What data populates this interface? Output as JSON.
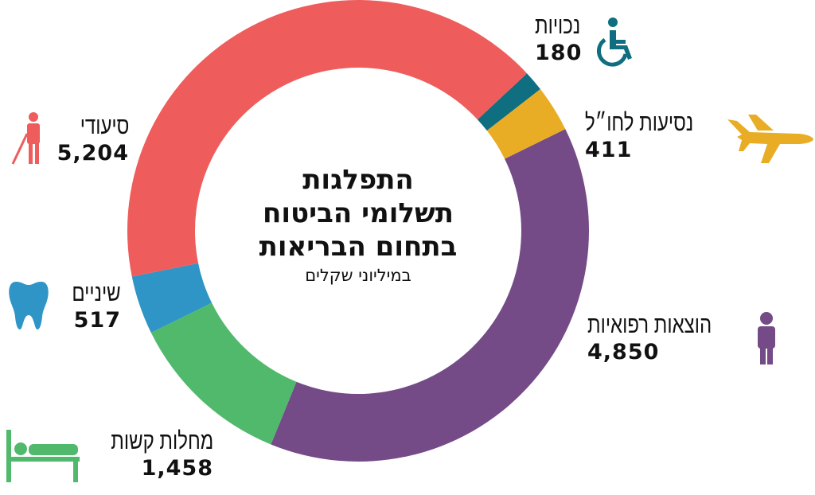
{
  "chart_data": {
    "type": "pie",
    "style": "donut",
    "title": [
      "התפלגות",
      "תשלומי הביטוח",
      "בתחום הבריאות"
    ],
    "subtitle": "במיליוני שקלים",
    "slices": [
      {
        "label": "נכויות",
        "value": 180,
        "display": "180",
        "color": "#0f6e80",
        "icon": "wheelchair-icon"
      },
      {
        "label": "נסיעות לחו״ל",
        "value": 411,
        "display": "411",
        "color": "#e9ad25",
        "icon": "airplane-icon"
      },
      {
        "label": "הוצאות רפואיות",
        "value": 4850,
        "display": "4,850",
        "color": "#744a87",
        "icon": "doctor-icon"
      },
      {
        "label": "מחלות קשות",
        "value": 1458,
        "display": "1,458",
        "color": "#50b96b",
        "icon": "hospital-bed-icon"
      },
      {
        "label": "שיניים",
        "value": 517,
        "display": "517",
        "color": "#2f94c6",
        "icon": "tooth-icon"
      },
      {
        "label": "סיעודי",
        "value": 5204,
        "display": "5,204",
        "color": "#ef5c5c",
        "icon": "elderly-person-icon"
      }
    ]
  }
}
